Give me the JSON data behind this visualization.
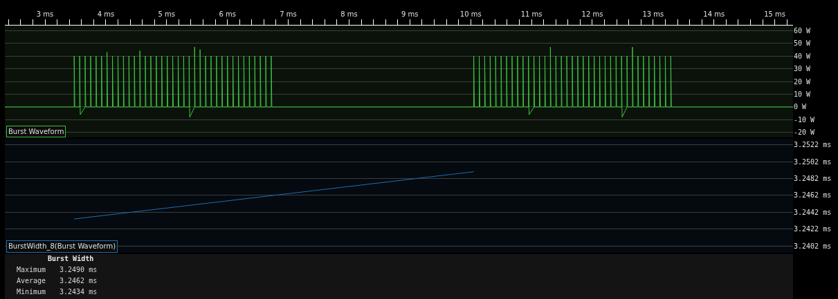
{
  "chart_data": [
    {
      "type": "line",
      "series": [
        {
          "name": "Burst Waveform",
          "color": "#3fc23f",
          "x": [
            2.34,
            3.48,
            3.48,
            3.49,
            3.57,
            3.57,
            3.58,
            3.66,
            3.66,
            3.67,
            3.75,
            3.75,
            3.76,
            3.84,
            3.84,
            3.85,
            3.93,
            3.93,
            3.94,
            4.02,
            4.02,
            4.03,
            4.11,
            4.11,
            4.12,
            4.2,
            4.2,
            4.21,
            4.29,
            4.29,
            4.3,
            4.38,
            4.38,
            4.39,
            4.47,
            4.47,
            4.48,
            4.56,
            4.56,
            4.57,
            4.65,
            4.65,
            4.66,
            4.74,
            4.74,
            4.75,
            4.83,
            4.83,
            4.84,
            4.92,
            4.92,
            4.93,
            5.01,
            5.01,
            5.02,
            5.1,
            5.1,
            5.11,
            5.19,
            5.19,
            5.2,
            5.28,
            5.28,
            5.29,
            5.37,
            5.37,
            5.38,
            5.46,
            5.46,
            5.47,
            5.55,
            5.55,
            5.56,
            5.64,
            5.64,
            5.65,
            5.73,
            5.73,
            5.74,
            5.82,
            5.82,
            5.83,
            5.91,
            5.91,
            5.92,
            6.0,
            6.0,
            6.01,
            6.09,
            6.09,
            6.1,
            6.18,
            6.18,
            6.19,
            6.27,
            6.27,
            6.28,
            6.36,
            6.36,
            6.37,
            6.45,
            6.45,
            6.46,
            6.54,
            6.54,
            6.55,
            6.63,
            6.63,
            6.64,
            6.72,
            6.72,
            6.73,
            10.05,
            10.05,
            10.06,
            10.14,
            10.14,
            10.15,
            10.23,
            10.23,
            10.24,
            10.32,
            10.32,
            10.33,
            10.41,
            10.41,
            10.42,
            10.5,
            10.5,
            10.51,
            10.59,
            10.59,
            10.6,
            10.68,
            10.68,
            10.69,
            10.77,
            10.77,
            10.78,
            10.86,
            10.86,
            10.87,
            10.95,
            10.95,
            10.96,
            11.04,
            11.04,
            11.05,
            11.13,
            11.13,
            11.14,
            11.22,
            11.22,
            11.23,
            11.31,
            11.31,
            11.32,
            11.4,
            11.4,
            11.41,
            11.49,
            11.49,
            11.5,
            11.58,
            11.58,
            11.59,
            11.67,
            11.67,
            11.68,
            11.76,
            11.76,
            11.77,
            11.85,
            11.85,
            11.86,
            11.94,
            11.94,
            11.95,
            12.03,
            12.03,
            12.04,
            12.12,
            12.12,
            12.13,
            12.21,
            12.21,
            12.22,
            12.3,
            12.3,
            12.31,
            12.39,
            12.39,
            12.4,
            12.48,
            12.48,
            12.49,
            12.57,
            12.57,
            12.58,
            12.66,
            12.66,
            12.67,
            12.75,
            12.75,
            12.76,
            12.84,
            12.84,
            12.85,
            12.93,
            12.93,
            12.94,
            13.02,
            13.02,
            13.03,
            13.11,
            13.11,
            13.12,
            13.2,
            13.2,
            13.21,
            13.29,
            13.29,
            13.3,
            15.3
          ],
          "values": [
            0,
            0,
            40,
            0,
            0,
            40,
            -6,
            0,
            40,
            0,
            0,
            40,
            0,
            0,
            40,
            0,
            0,
            40,
            0,
            0,
            43,
            0,
            0,
            40,
            0,
            0,
            40,
            0,
            0,
            40,
            0,
            0,
            40,
            0,
            0,
            40,
            0,
            0,
            44,
            0,
            0,
            40,
            0,
            0,
            40,
            0,
            0,
            40,
            0,
            0,
            40,
            0,
            0,
            40,
            0,
            0,
            40,
            0,
            0,
            40,
            0,
            0,
            40,
            0,
            0,
            40,
            -8,
            0,
            47,
            0,
            0,
            45,
            0,
            0,
            40,
            0,
            0,
            40,
            0,
            0,
            40,
            0,
            0,
            40,
            0,
            0,
            40,
            0,
            0,
            40,
            0,
            0,
            40,
            0,
            0,
            40,
            0,
            0,
            40,
            0,
            0,
            40,
            0,
            0,
            40,
            0,
            0,
            40,
            0,
            0,
            40,
            0,
            0,
            40,
            0,
            0,
            40,
            0,
            0,
            40,
            0,
            0,
            40,
            0,
            0,
            40,
            0,
            0,
            40,
            0,
            0,
            40,
            0,
            0,
            40,
            0,
            0,
            40,
            0,
            0,
            40,
            0,
            0,
            40,
            -6,
            0,
            40,
            0,
            0,
            40,
            0,
            0,
            40,
            0,
            0,
            47,
            0,
            0,
            40,
            0,
            0,
            40,
            0,
            0,
            40,
            0,
            0,
            40,
            0,
            0,
            40,
            0,
            0,
            40,
            0,
            0,
            40,
            0,
            0,
            40,
            0,
            0,
            40,
            0,
            0,
            40,
            0,
            0,
            40,
            0,
            0,
            40,
            0,
            0,
            40,
            -8,
            0,
            40,
            0,
            0,
            47,
            0,
            0,
            40,
            0,
            0,
            40,
            0,
            0,
            40,
            0,
            0,
            40,
            0,
            0,
            40,
            0,
            0,
            40,
            0,
            0,
            40,
            0,
            0
          ]
        }
      ],
      "xlim": [
        2.34,
        15.3
      ],
      "xticks": [
        {
          "value": 2.4,
          "label": null
        },
        {
          "value": 2.6,
          "label": null
        },
        {
          "value": 2.8,
          "label": null
        },
        {
          "value": 3,
          "label": "3 ms"
        },
        {
          "value": 3.2,
          "label": null
        },
        {
          "value": 3.4,
          "label": null
        },
        {
          "value": 3.6,
          "label": null
        },
        {
          "value": 3.8,
          "label": null
        },
        {
          "value": 4,
          "label": "4 ms"
        },
        {
          "value": 4.2,
          "label": null
        },
        {
          "value": 4.4,
          "label": null
        },
        {
          "value": 4.6,
          "label": null
        },
        {
          "value": 4.8,
          "label": null
        },
        {
          "value": 5,
          "label": "5 ms"
        },
        {
          "value": 5.2,
          "label": null
        },
        {
          "value": 5.4,
          "label": null
        },
        {
          "value": 5.6,
          "label": null
        },
        {
          "value": 5.8,
          "label": null
        },
        {
          "value": 6,
          "label": "6 ms"
        },
        {
          "value": 6.2,
          "label": null
        },
        {
          "value": 6.4,
          "label": null
        },
        {
          "value": 6.6,
          "label": null
        },
        {
          "value": 6.8,
          "label": null
        },
        {
          "value": 7,
          "label": "7 ms"
        },
        {
          "value": 7.2,
          "label": null
        },
        {
          "value": 7.4,
          "label": null
        },
        {
          "value": 7.6,
          "label": null
        },
        {
          "value": 7.8,
          "label": null
        },
        {
          "value": 8,
          "label": "8 ms"
        },
        {
          "value": 8.2,
          "label": null
        },
        {
          "value": 8.4,
          "label": null
        },
        {
          "value": 8.6,
          "label": null
        },
        {
          "value": 8.8,
          "label": null
        },
        {
          "value": 9,
          "label": "9 ms"
        },
        {
          "value": 9.2,
          "label": null
        },
        {
          "value": 9.4,
          "label": null
        },
        {
          "value": 9.6,
          "label": null
        },
        {
          "value": 9.8,
          "label": null
        },
        {
          "value": 10,
          "label": "10 ms"
        },
        {
          "value": 10.2,
          "label": null
        },
        {
          "value": 10.4,
          "label": null
        },
        {
          "value": 10.6,
          "label": null
        },
        {
          "value": 10.8,
          "label": null
        },
        {
          "value": 11,
          "label": "11 ms"
        },
        {
          "value": 11.2,
          "label": null
        },
        {
          "value": 11.4,
          "label": null
        },
        {
          "value": 11.6,
          "label": null
        },
        {
          "value": 11.8,
          "label": null
        },
        {
          "value": 12,
          "label": "12 ms"
        },
        {
          "value": 12.2,
          "label": null
        },
        {
          "value": 12.4,
          "label": null
        },
        {
          "value": 12.6,
          "label": null
        },
        {
          "value": 12.8,
          "label": null
        },
        {
          "value": 13,
          "label": "13 ms"
        },
        {
          "value": 13.2,
          "label": null
        },
        {
          "value": 13.4,
          "label": null
        },
        {
          "value": 13.6,
          "label": null
        },
        {
          "value": 13.8,
          "label": null
        },
        {
          "value": 14,
          "label": "14 ms"
        },
        {
          "value": 14.2,
          "label": null
        },
        {
          "value": 14.4,
          "label": null
        },
        {
          "value": 14.6,
          "label": null
        },
        {
          "value": 14.8,
          "label": null
        },
        {
          "value": 15,
          "label": "15 ms"
        },
        {
          "value": 15.2,
          "label": null
        }
      ],
      "ylim": [
        -23.8,
        63.8
      ],
      "yticks": [
        {
          "value": 60,
          "label": "60 W"
        },
        {
          "value": 50,
          "label": "50 W"
        },
        {
          "value": 40,
          "label": "40 W"
        },
        {
          "value": 30,
          "label": "30 W"
        },
        {
          "value": 20,
          "label": "20 W"
        },
        {
          "value": 10,
          "label": "10 W"
        },
        {
          "value": 0,
          "label": "0 W"
        },
        {
          "value": -10,
          "label": "-10 W"
        },
        {
          "value": -20,
          "label": "-20 W"
        }
      ],
      "grid": "y",
      "marker": "none"
    },
    {
      "type": "line",
      "series": [
        {
          "name": "BurstWidth_8(Burst Waveform)",
          "color": "#1f6fb0",
          "x": [
            3.48,
            10.05
          ],
          "values": [
            3.2434,
            3.249
          ]
        }
      ],
      "xlim": [
        2.34,
        15.3
      ],
      "ylim": [
        3.2394,
        3.2529
      ],
      "yticks": [
        {
          "value": 3.2522,
          "label": "3.2522 ms"
        },
        {
          "value": 3.2502,
          "label": "3.2502 ms"
        },
        {
          "value": 3.2482,
          "label": "3.2482 ms"
        },
        {
          "value": 3.2462,
          "label": "3.2462 ms"
        },
        {
          "value": 3.2442,
          "label": "3.2442 ms"
        },
        {
          "value": 3.2422,
          "label": "3.2422 ms"
        },
        {
          "value": 3.2402,
          "label": "3.2402 ms"
        }
      ],
      "grid": "y",
      "marker": "none",
      "tick_labels": "y"
    },
    {
      "type": "other",
      "annotations": [
        "Burst Width",
        "Maximum",
        "3.2490 ms",
        "Average",
        "3.2462 ms",
        "Minimum",
        "3.2434 ms"
      ]
    }
  ]
}
